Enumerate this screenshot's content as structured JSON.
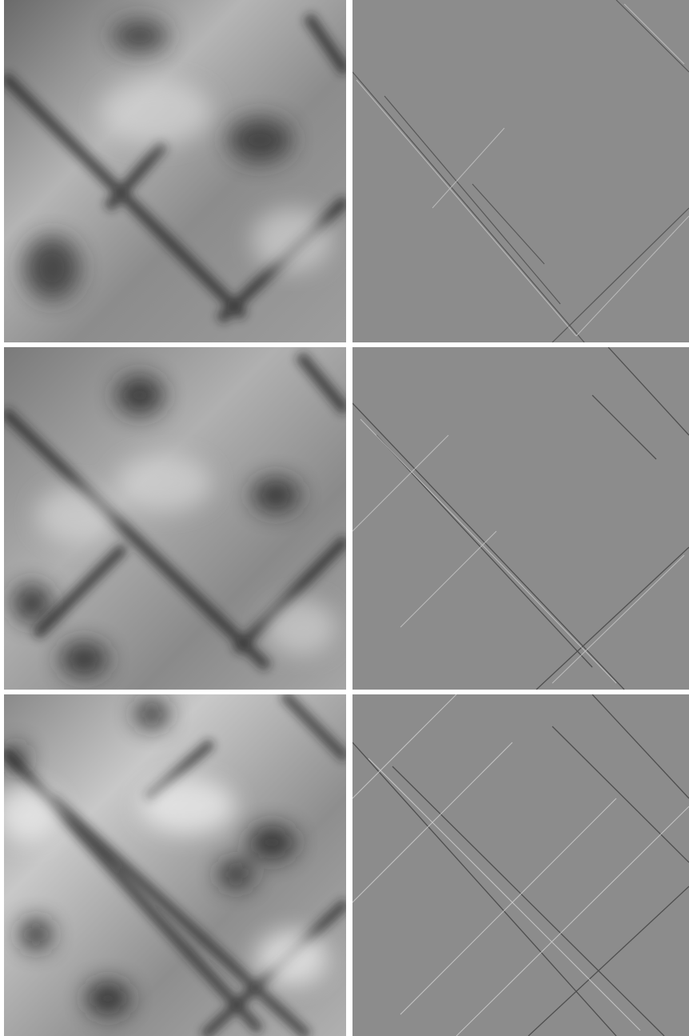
{
  "figure": {
    "layout": {
      "rows": 3,
      "columns": 2
    },
    "panels": [
      {
        "row": 0,
        "col": 0,
        "kind": "height-map",
        "roughness": 1
      },
      {
        "row": 0,
        "col": 1,
        "kind": "gradient-map",
        "roughness": 1
      },
      {
        "row": 1,
        "col": 0,
        "kind": "height-map",
        "roughness": 2
      },
      {
        "row": 1,
        "col": 1,
        "kind": "gradient-map",
        "roughness": 2
      },
      {
        "row": 2,
        "col": 0,
        "kind": "height-map",
        "roughness": 3
      },
      {
        "row": 2,
        "col": 1,
        "kind": "gradient-map",
        "roughness": 3
      }
    ],
    "colors": {
      "background": "#ffffff",
      "height_base": "#8a8a8a",
      "gradient_base": "#8c8c8c",
      "dark": "#101010",
      "light": "#f0f0f0"
    }
  }
}
